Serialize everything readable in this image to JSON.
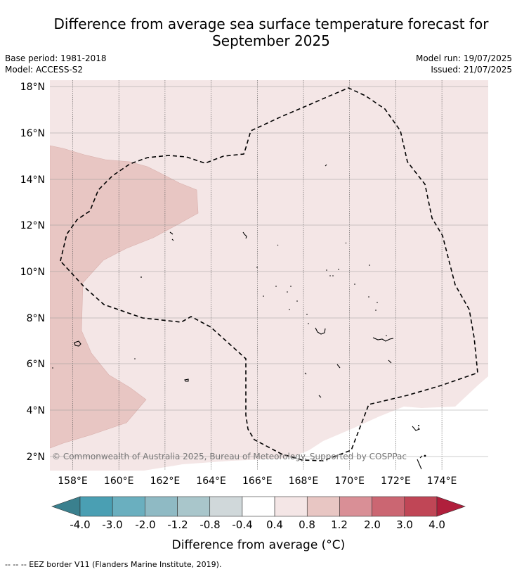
{
  "title_line1": "Difference from average sea surface temperature forecast for",
  "title_line2": "September 2025",
  "meta": {
    "base_period": "Base period: 1981-2018",
    "model": "Model: ACCESS-S2",
    "model_run": "Model run: 19/07/2025",
    "issued": "Issued: 21/07/2025"
  },
  "map": {
    "lat_labels": [
      "18°N",
      "16°N",
      "14°N",
      "12°N",
      "10°N",
      "8°N",
      "6°N",
      "4°N",
      "2°N"
    ],
    "lon_labels": [
      "158°E",
      "160°E",
      "162°E",
      "164°E",
      "166°E",
      "168°E",
      "170°E",
      "172°E",
      "174°E"
    ],
    "lat_values": [
      18,
      16,
      14,
      12,
      10,
      8,
      6,
      4,
      2
    ],
    "lon_values": [
      158,
      160,
      162,
      164,
      166,
      168,
      170,
      172,
      174
    ],
    "extent": {
      "lon_min": 157,
      "lon_max": 176,
      "lat_min": 1.5,
      "lat_max": 18.3
    },
    "copyright": "© Commonwealth of Australia 2025, Bureau of Meteorology. Supported by COSPPac",
    "eez_legend": "--  --  -- EEZ border V11 (Flanders Marine Institute, 2019)."
  },
  "colorbar": {
    "title": "Difference from average (°C)",
    "tick_labels": [
      "-4.0",
      "-3.0",
      "-2.0",
      "-1.2",
      "-0.8",
      "-0.4",
      "0.4",
      "0.8",
      "1.2",
      "2.0",
      "3.0",
      "4.0"
    ],
    "colors": [
      "#4a9fb3",
      "#6aafbf",
      "#8fbac4",
      "#a9c6cb",
      "#d0d8da",
      "#ffffff",
      "#f4e6e6",
      "#e8c6c3",
      "#d98f96",
      "#cb6672",
      "#c04656"
    ],
    "under_color": "#3a808e",
    "over_color": "#b01f3c"
  },
  "colors": {
    "band_0_4_0_8": "#f4e6e6",
    "band_0_8_1_2": "#e8c6c3"
  }
}
